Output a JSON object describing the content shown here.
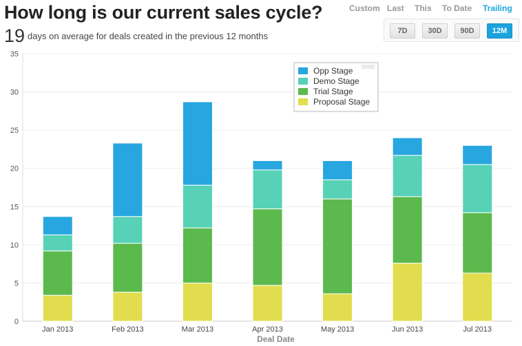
{
  "header": {
    "title": "How long is our current sales cycle?",
    "summary_value": "19",
    "summary_text": "days on average for deals created in the previous 12 months"
  },
  "range_tabs": [
    {
      "label": "Custom",
      "active": false
    },
    {
      "label": "Last",
      "active": false
    },
    {
      "label": "This",
      "active": false
    },
    {
      "label": "To Date",
      "active": false
    },
    {
      "label": "Trailing",
      "active": true
    }
  ],
  "period_buttons": [
    {
      "label": "7D",
      "active": false
    },
    {
      "label": "30D",
      "active": false
    },
    {
      "label": "90D",
      "active": false
    },
    {
      "label": "12M",
      "active": true
    }
  ],
  "colors": {
    "accent": "#1ca3de",
    "opp": "#27a6e0",
    "demo": "#57d2b6",
    "trial": "#5cb94d",
    "proposal": "#e2dd4e"
  },
  "chart_data": {
    "type": "bar",
    "stacked": true,
    "categories": [
      "Jan 2013",
      "Feb 2013",
      "Mar 2013",
      "Apr 2013",
      "May 2013",
      "Jun 2013",
      "Jul 2013"
    ],
    "series": [
      {
        "name": "Proposal Stage",
        "color": "#e2dd4e",
        "values": [
          3.4,
          3.8,
          5.0,
          4.7,
          3.6,
          7.6,
          6.3
        ]
      },
      {
        "name": "Trial Stage",
        "color": "#5cb94d",
        "values": [
          5.8,
          6.4,
          7.2,
          10.0,
          12.4,
          8.7,
          7.9
        ]
      },
      {
        "name": "Demo Stage",
        "color": "#57d2b6",
        "values": [
          2.1,
          3.5,
          5.6,
          5.1,
          2.5,
          5.4,
          6.3
        ]
      },
      {
        "name": "Opp Stage",
        "color": "#27a6e0",
        "values": [
          2.4,
          9.6,
          10.9,
          1.2,
          2.5,
          2.3,
          2.5
        ]
      }
    ],
    "legend_order": [
      "Opp Stage",
      "Demo Stage",
      "Trial Stage",
      "Proposal Stage"
    ],
    "xlabel": "Deal Date",
    "ylabel": "",
    "ylim": [
      0,
      35
    ],
    "yticks": [
      0,
      5,
      10,
      15,
      20,
      25,
      30,
      35
    ],
    "grid": true,
    "legend_position": "top-center"
  }
}
